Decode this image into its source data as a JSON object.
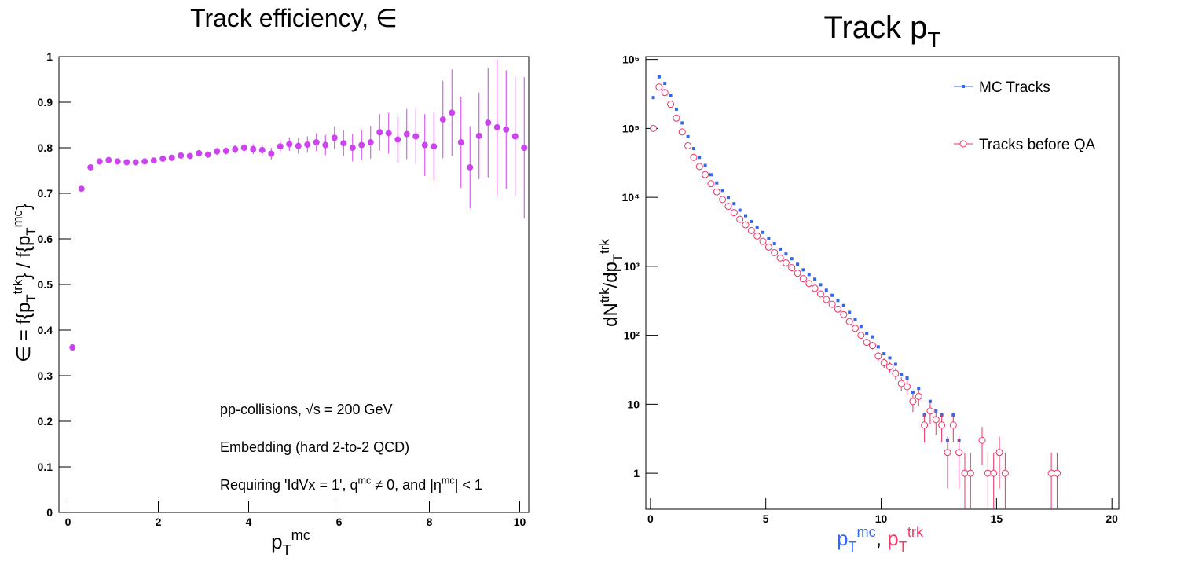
{
  "chart_data": [
    {
      "type": "scatter",
      "title": "Track efficiency, ∈",
      "x_label": [
        {
          "text": "p"
        },
        {
          "text": "T",
          "shift": "sub"
        },
        {
          "text": "mc",
          "shift": "sup"
        }
      ],
      "y_label": [
        {
          "text": "∈ = f{p"
        },
        {
          "text": "T",
          "shift": "sub"
        },
        {
          "text": "trk",
          "shift": "sup"
        },
        {
          "text": "} / f{p"
        },
        {
          "text": "T",
          "shift": "sub"
        },
        {
          "text": "mc",
          "shift": "sup"
        },
        {
          "text": "}"
        }
      ],
      "annotations": [
        [
          {
            "text": "pp-collisions, √s = 200 GeV"
          }
        ],
        [
          {
            "text": "Embedding (hard 2-to-2 QCD)"
          }
        ],
        [
          {
            "text": "Requiring 'IdVx = 1', q"
          },
          {
            "text": "mc",
            "shift": "sup"
          },
          {
            "text": " ≠ 0, and |η"
          },
          {
            "text": "mc",
            "shift": "sup"
          },
          {
            "text": "| < 1"
          }
        ]
      ],
      "xlim": [
        -0.2,
        10.2
      ],
      "xticks": [
        0,
        2,
        4,
        6,
        8,
        10
      ],
      "ylim": [
        0,
        1
      ],
      "yticks": [
        0,
        0.1,
        0.2,
        0.3,
        0.4,
        0.5,
        0.6,
        0.7,
        0.8,
        0.9,
        1
      ],
      "color": "#cc44ee",
      "marker": "circle",
      "x": [
        0.1,
        0.3,
        0.5,
        0.7,
        0.9,
        1.1,
        1.3,
        1.5,
        1.7,
        1.9,
        2.1,
        2.3,
        2.5,
        2.7,
        2.9,
        3.1,
        3.3,
        3.5,
        3.7,
        3.9,
        4.1,
        4.3,
        4.5,
        4.7,
        4.9,
        5.1,
        5.3,
        5.5,
        5.7,
        5.9,
        6.1,
        6.3,
        6.5,
        6.7,
        6.9,
        7.1,
        7.3,
        7.5,
        7.7,
        7.9,
        8.1,
        8.3,
        8.5,
        8.7,
        8.9,
        9.1,
        9.3,
        9.5,
        9.7,
        9.9,
        10.1
      ],
      "values": [
        0.362,
        0.71,
        0.757,
        0.77,
        0.773,
        0.77,
        0.768,
        0.768,
        0.77,
        0.772,
        0.776,
        0.778,
        0.783,
        0.782,
        0.788,
        0.785,
        0.792,
        0.793,
        0.797,
        0.8,
        0.797,
        0.795,
        0.787,
        0.803,
        0.808,
        0.804,
        0.807,
        0.812,
        0.806,
        0.822,
        0.81,
        0.8,
        0.806,
        0.812,
        0.834,
        0.832,
        0.818,
        0.83,
        0.825,
        0.806,
        0.803,
        0.862,
        0.877,
        0.812,
        0.757,
        0.826,
        0.855,
        0.845,
        0.84,
        0.825,
        0.8
      ],
      "errors": [
        0.003,
        0.003,
        0.003,
        0.003,
        0.003,
        0.004,
        0.004,
        0.004,
        0.004,
        0.004,
        0.005,
        0.005,
        0.006,
        0.006,
        0.007,
        0.007,
        0.008,
        0.008,
        0.009,
        0.01,
        0.011,
        0.012,
        0.013,
        0.014,
        0.015,
        0.017,
        0.018,
        0.02,
        0.022,
        0.025,
        0.028,
        0.03,
        0.033,
        0.036,
        0.04,
        0.045,
        0.05,
        0.055,
        0.06,
        0.068,
        0.075,
        0.085,
        0.095,
        0.1,
        0.09,
        0.095,
        0.12,
        0.15,
        0.13,
        0.13,
        0.155
      ]
    },
    {
      "type": "scatter",
      "title": [
        {
          "text": "Track p"
        },
        {
          "text": "T",
          "shift": "sub"
        }
      ],
      "x_label": [
        {
          "text": "p",
          "color": "#3366ff"
        },
        {
          "text": "T",
          "shift": "sub",
          "color": "#3366ff"
        },
        {
          "text": "mc",
          "shift": "sup",
          "color": "#3366ff"
        },
        {
          "text": ", "
        },
        {
          "text": "p",
          "color": "#ff3366"
        },
        {
          "text": "T",
          "shift": "sub",
          "color": "#ff3366"
        },
        {
          "text": "trk",
          "shift": "sup",
          "color": "#ff3366"
        }
      ],
      "y_label": [
        {
          "text": "dN"
        },
        {
          "text": "trk",
          "shift": "sup"
        },
        {
          "text": "/dp"
        },
        {
          "text": "T",
          "shift": "sub"
        },
        {
          "text": "trk",
          "shift": "sup"
        }
      ],
      "log_y": true,
      "legend": "top-right",
      "xlim": [
        -0.2,
        20.3
      ],
      "xticks": [
        0,
        5,
        10,
        15,
        20
      ],
      "ylim": [
        0.3,
        1100000
      ],
      "yticks": [
        1,
        10,
        {
          "value": 100,
          "label": "10²"
        },
        {
          "value": 1000,
          "label": "10³"
        },
        {
          "value": 10000,
          "label": "10⁴"
        },
        {
          "value": 100000,
          "label": "10⁵"
        },
        {
          "value": 1000000,
          "label": "10⁶"
        }
      ],
      "x": [
        0.125,
        0.375,
        0.625,
        0.875,
        1.125,
        1.375,
        1.625,
        1.875,
        2.125,
        2.375,
        2.625,
        2.875,
        3.125,
        3.375,
        3.625,
        3.875,
        4.125,
        4.375,
        4.625,
        4.875,
        5.125,
        5.375,
        5.625,
        5.875,
        6.125,
        6.375,
        6.625,
        6.875,
        7.125,
        7.375,
        7.625,
        7.875,
        8.125,
        8.375,
        8.625,
        8.875,
        9.125,
        9.375,
        9.625,
        9.875,
        10.125,
        10.375,
        10.625,
        10.875,
        11.125,
        11.375,
        11.625,
        11.875,
        12.125,
        12.375,
        12.625,
        12.875,
        13.125,
        13.375,
        13.625,
        13.875,
        14.125,
        14.375,
        14.625,
        14.875,
        15.125,
        15.375,
        15.625,
        15.875,
        16.125,
        16.375,
        16.625,
        16.875,
        17.125,
        17.375,
        17.625
      ],
      "series": [
        {
          "name": "MC Tracks",
          "color": "#3366ee",
          "marker": "square",
          "values": [
            280000,
            560000,
            450000,
            300000,
            190000,
            120000,
            76000,
            51000,
            38000,
            29000,
            21300,
            16200,
            12600,
            10000,
            8100,
            6500,
            5400,
            4450,
            3700,
            3100,
            2560,
            2130,
            1780,
            1510,
            1290,
            1070,
            890,
            760,
            650,
            540,
            450,
            380,
            320,
            270,
            215,
            170,
            135,
            107,
            95,
            68,
            54,
            47,
            38,
            27,
            24,
            15,
            17,
            7,
            11,
            8,
            7,
            3,
            7,
            3,
            1,
            1,
            null,
            3,
            1,
            1,
            2,
            1,
            null,
            null,
            null,
            null,
            null,
            null,
            null,
            1,
            1
          ]
        },
        {
          "name": "Tracks before QA",
          "color": "#ee3366",
          "marker": "open-circle",
          "values": [
            100000,
            398000,
            331000,
            224000,
            141000,
            89000,
            56000,
            38000,
            28000,
            21400,
            15800,
            12000,
            9300,
            7400,
            6000,
            4800,
            4000,
            3300,
            2750,
            2300,
            1900,
            1580,
            1320,
            1120,
            955,
            794,
            661,
            562,
            479,
            398,
            331,
            282,
            240,
            200,
            158,
            126,
            100,
            79,
            71,
            50,
            40,
            35,
            28,
            20,
            18,
            11,
            13,
            5,
            8,
            6,
            5,
            2,
            5,
            2,
            1,
            1,
            null,
            3,
            1,
            1,
            2,
            1,
            null,
            null,
            null,
            null,
            null,
            null,
            null,
            1,
            1
          ],
          "errors": [
            316,
            631,
            575,
            473,
            375,
            298,
            237,
            195,
            167,
            146,
            126,
            110,
            96,
            86,
            77,
            69,
            63,
            57,
            52,
            48,
            44,
            40,
            36,
            33,
            31,
            28,
            26,
            24,
            22,
            20,
            18,
            17,
            15,
            14,
            13,
            11,
            10,
            8.9,
            8.4,
            7.1,
            6.3,
            5.9,
            5.3,
            4.5,
            4.2,
            3.3,
            3.6,
            2.2,
            2.8,
            2.4,
            2.2,
            1.4,
            2.2,
            1.4,
            1,
            1,
            null,
            1.7,
            1,
            1,
            1.4,
            1,
            null,
            null,
            null,
            null,
            null,
            null,
            null,
            1,
            1
          ]
        }
      ]
    }
  ]
}
